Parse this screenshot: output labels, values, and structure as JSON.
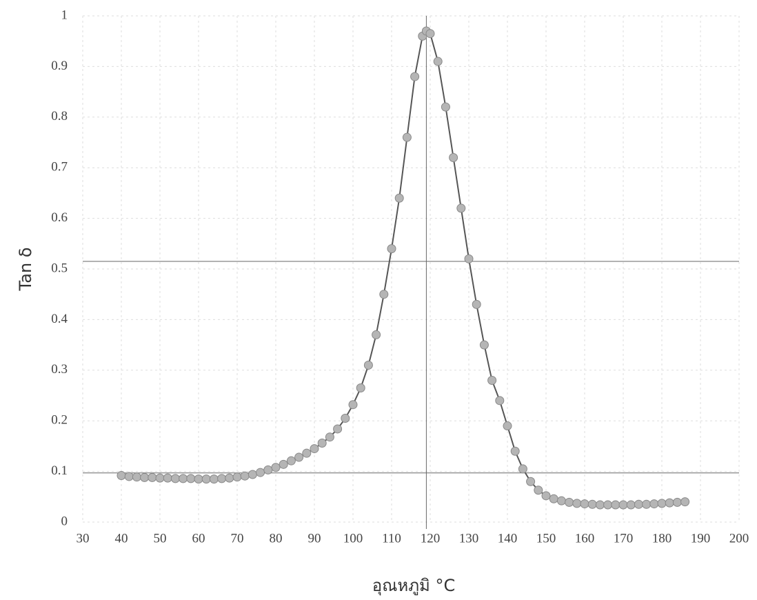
{
  "chart_data": {
    "type": "line",
    "xlabel": "อุณหภูมิ °C",
    "ylabel": "Tan δ",
    "x": [
      40,
      42,
      44,
      46,
      48,
      50,
      52,
      54,
      56,
      58,
      60,
      62,
      64,
      66,
      68,
      70,
      72,
      74,
      76,
      78,
      80,
      82,
      84,
      86,
      88,
      90,
      92,
      94,
      96,
      98,
      100,
      102,
      104,
      106,
      108,
      110,
      112,
      114,
      116,
      118,
      119,
      120,
      122,
      124,
      126,
      128,
      130,
      132,
      134,
      136,
      138,
      140,
      142,
      144,
      146,
      148,
      150,
      152,
      154,
      156,
      158,
      160,
      162,
      164,
      166,
      168,
      170,
      172,
      174,
      176,
      178,
      180,
      182,
      184,
      186
    ],
    "values": [
      0.092,
      0.09,
      0.089,
      0.088,
      0.088,
      0.087,
      0.087,
      0.086,
      0.086,
      0.086,
      0.085,
      0.085,
      0.085,
      0.086,
      0.087,
      0.089,
      0.091,
      0.094,
      0.098,
      0.103,
      0.108,
      0.114,
      0.121,
      0.128,
      0.136,
      0.145,
      0.156,
      0.168,
      0.184,
      0.205,
      0.232,
      0.265,
      0.31,
      0.37,
      0.45,
      0.54,
      0.64,
      0.76,
      0.88,
      0.96,
      0.97,
      0.965,
      0.91,
      0.82,
      0.72,
      0.62,
      0.52,
      0.43,
      0.35,
      0.28,
      0.24,
      0.19,
      0.14,
      0.105,
      0.08,
      0.063,
      0.052,
      0.046,
      0.042,
      0.039,
      0.037,
      0.036,
      0.035,
      0.034,
      0.034,
      0.034,
      0.034,
      0.034,
      0.035,
      0.035,
      0.036,
      0.037,
      0.038,
      0.039,
      0.04
    ],
    "color": "#555555",
    "marker_color": "#b5b5b5",
    "xlim": [
      30,
      200
    ],
    "xticks": [
      30,
      40,
      50,
      60,
      70,
      80,
      90,
      100,
      110,
      120,
      130,
      140,
      150,
      160,
      170,
      180,
      190,
      200
    ],
    "ylim": [
      0,
      1
    ],
    "yticks": [
      0,
      0.1,
      0.2,
      0.3,
      0.4,
      0.5,
      0.6,
      0.7,
      0.8,
      0.9,
      1
    ],
    "hlines": [
      0.515,
      0.097
    ],
    "vlines": [
      119
    ],
    "grid": true
  }
}
